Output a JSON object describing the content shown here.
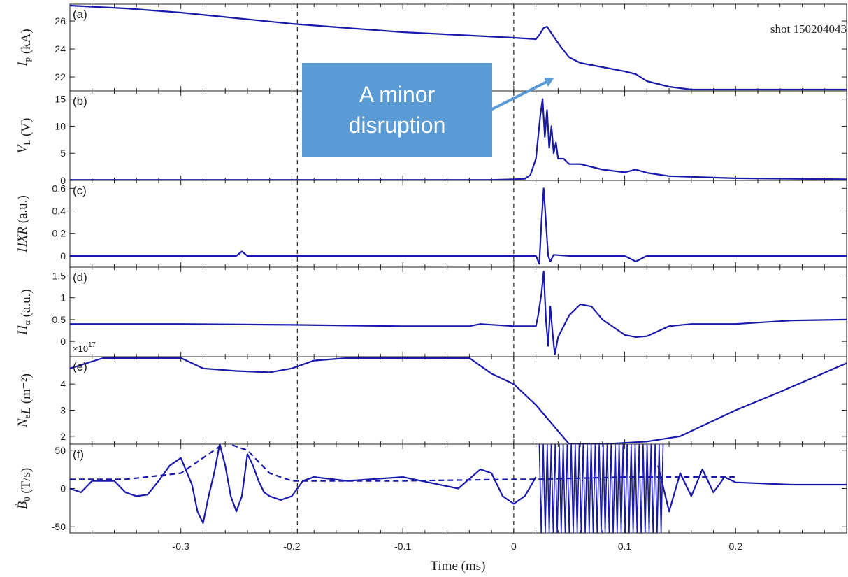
{
  "annotation": {
    "callout_line1": "A minor",
    "callout_line2": "disruption",
    "shot_label": "shot 150204043",
    "exponent_label": "×10",
    "exponent_power": "17",
    "callout_color": "#5b9bd5"
  },
  "chart_data": {
    "type": "line",
    "xlabel": "Time (ms)",
    "xlim": [
      -0.4,
      0.3
    ],
    "xticks": [
      -0.3,
      -0.2,
      -0.1,
      0,
      0.1,
      0.2
    ],
    "xtick_labels": [
      "-0.3",
      "-0.2",
      "-0.1",
      "0",
      "0.1",
      "0.2"
    ],
    "vlines": [
      -0.195,
      0
    ],
    "line_color": "#1a1aaa",
    "panels": [
      {
        "id": "a",
        "label": "(a)",
        "ylabel_main": "I",
        "ylabel_sub": "p",
        "ylabel_unit": " (kA)",
        "ylim": [
          21,
          27.2
        ],
        "yticks": [
          22,
          24,
          26
        ],
        "ytick_labels": [
          "22",
          "24",
          "26"
        ],
        "series": [
          {
            "style": "solid",
            "x": [
              -0.4,
              -0.35,
              -0.3,
              -0.25,
              -0.2,
              -0.15,
              -0.1,
              -0.05,
              0,
              0.02,
              0.023,
              0.027,
              0.03,
              0.035,
              0.042,
              0.05,
              0.06,
              0.08,
              0.1,
              0.11,
              0.12,
              0.14,
              0.16,
              0.2,
              0.3
            ],
            "y": [
              27.1,
              26.9,
              26.6,
              26.2,
              25.8,
              25.5,
              25.2,
              25.0,
              24.8,
              24.7,
              25.0,
              25.5,
              25.6,
              25.0,
              24.2,
              23.4,
              23.0,
              22.7,
              22.4,
              22.2,
              21.7,
              21.3,
              21.1,
              21.1,
              21.1
            ]
          }
        ]
      },
      {
        "id": "b",
        "label": "(b)",
        "ylabel_main": "V",
        "ylabel_sub": "L",
        "ylabel_unit": " (V)",
        "ylim": [
          0,
          16.5
        ],
        "yticks": [
          0,
          5,
          10,
          15
        ],
        "ytick_labels": [
          "0",
          "5",
          "10",
          "15"
        ],
        "series": [
          {
            "style": "solid",
            "x": [
              -0.4,
              -0.3,
              -0.2,
              -0.1,
              -0.02,
              0,
              0.01,
              0.015,
              0.02,
              0.024,
              0.026,
              0.028,
              0.03,
              0.032,
              0.034,
              0.036,
              0.038,
              0.04,
              0.045,
              0.05,
              0.06,
              0.08,
              0.1,
              0.11,
              0.12,
              0.14,
              0.2,
              0.3
            ],
            "y": [
              0.1,
              0.1,
              0.1,
              0.1,
              0.1,
              0.2,
              0.3,
              1,
              4,
              12,
              15,
              8,
              13,
              6,
              10,
              5,
              7,
              4,
              4,
              3,
              3,
              2,
              1.5,
              2,
              1.4,
              0.8,
              0.4,
              0.2
            ]
          }
        ]
      },
      {
        "id": "c",
        "label": "(c)",
        "ylabel_main": "HXR",
        "ylabel_sub": "",
        "ylabel_unit": " (a.u.)",
        "ylim": [
          -0.1,
          0.67
        ],
        "yticks": [
          0,
          0.2,
          0.4,
          0.6
        ],
        "ytick_labels": [
          "0",
          "0.2",
          "0.4",
          "0.6"
        ],
        "series": [
          {
            "style": "solid",
            "x": [
              -0.4,
              -0.3,
              -0.25,
              -0.245,
              -0.24,
              -0.2,
              -0.15,
              -0.1,
              -0.05,
              0,
              0.02,
              0.023,
              0.025,
              0.027,
              0.029,
              0.031,
              0.033,
              0.036,
              0.05,
              0.1,
              0.11,
              0.12,
              0.2,
              0.3
            ],
            "y": [
              0,
              0,
              0,
              0.04,
              0,
              0,
              0,
              0,
              0,
              0,
              0,
              -0.07,
              0.3,
              0.6,
              0.3,
              0,
              -0.05,
              0.01,
              0,
              0,
              -0.05,
              0,
              0,
              0
            ]
          }
        ]
      },
      {
        "id": "d",
        "label": "(d)",
        "ylabel_main": "H",
        "ylabel_sub": "α",
        "ylabel_unit": " (a.u.)",
        "ylim": [
          -0.35,
          1.7
        ],
        "yticks": [
          0,
          0.5,
          1,
          1.5
        ],
        "ytick_labels": [
          "0",
          "0.5",
          "1",
          "1.5"
        ],
        "series": [
          {
            "style": "solid",
            "x": [
              -0.4,
              -0.3,
              -0.2,
              -0.1,
              -0.04,
              -0.03,
              0,
              0.02,
              0.022,
              0.025,
              0.027,
              0.029,
              0.031,
              0.033,
              0.035,
              0.037,
              0.04,
              0.05,
              0.06,
              0.07,
              0.08,
              0.1,
              0.11,
              0.12,
              0.14,
              0.16,
              0.2,
              0.25,
              0.3
            ],
            "y": [
              0.4,
              0.4,
              0.38,
              0.35,
              0.35,
              0.4,
              0.35,
              0.35,
              0.6,
              1.1,
              1.6,
              0.5,
              -0.1,
              0.8,
              0.2,
              -0.3,
              0.1,
              0.6,
              0.85,
              0.8,
              0.5,
              0.15,
              0.1,
              0.12,
              0.35,
              0.4,
              0.4,
              0.48,
              0.5
            ]
          }
        ]
      },
      {
        "id": "e",
        "label": "(e)",
        "ylabel_main": "N",
        "ylabel_sub": "e",
        "ylabel_unit": " (m⁻²)",
        "ylabel_mid": "L",
        "ylim": [
          1.7,
          5.05
        ],
        "yticks": [
          2,
          3,
          4
        ],
        "ytick_labels": [
          "2",
          "3",
          "4"
        ],
        "series": [
          {
            "style": "solid",
            "x": [
              -0.4,
              -0.37,
              -0.3,
              -0.28,
              -0.25,
              -0.22,
              -0.2,
              -0.18,
              -0.15,
              -0.12,
              -0.04,
              -0.02,
              0,
              0.02,
              0.05,
              0.08,
              0.12,
              0.15,
              0.2,
              0.24,
              0.3
            ],
            "y": [
              4.6,
              5.0,
              5.0,
              4.6,
              4.5,
              4.45,
              4.6,
              4.9,
              5.0,
              5.0,
              5.0,
              4.4,
              4.0,
              3.2,
              1.7,
              1.7,
              1.8,
              2.0,
              3.0,
              3.7,
              4.8
            ]
          }
        ]
      },
      {
        "id": "f",
        "label": "(f)",
        "ylabel_main": "Ḃ",
        "ylabel_sub": "θ",
        "ylabel_unit": " (T/s)",
        "ylim": [
          -58,
          58
        ],
        "yticks": [
          -50,
          0,
          50
        ],
        "ytick_labels": [
          "-50",
          "0",
          "50"
        ],
        "series": [
          {
            "style": "solid",
            "x": [
              -0.4,
              -0.39,
              -0.38,
              -0.36,
              -0.35,
              -0.34,
              -0.33,
              -0.32,
              -0.31,
              -0.3,
              -0.29,
              -0.285,
              -0.28,
              -0.275,
              -0.27,
              -0.265,
              -0.26,
              -0.255,
              -0.25,
              -0.245,
              -0.24,
              -0.235,
              -0.23,
              -0.225,
              -0.22,
              -0.21,
              -0.2,
              -0.19,
              -0.18,
              -0.15,
              -0.1,
              -0.05,
              -0.03,
              -0.02,
              -0.01,
              0,
              0.01,
              0.02
            ],
            "y": [
              0,
              -5,
              10,
              10,
              -5,
              -10,
              -8,
              10,
              30,
              40,
              5,
              -30,
              -45,
              -10,
              20,
              58,
              30,
              -10,
              -30,
              -10,
              45,
              30,
              10,
              -5,
              -10,
              -15,
              -10,
              10,
              15,
              10,
              15,
              0,
              25,
              20,
              -10,
              -20,
              -10,
              15
            ]
          },
          {
            "style": "dashed",
            "x": [
              -0.4,
              -0.35,
              -0.3,
              -0.28,
              -0.26,
              -0.24,
              -0.22,
              -0.2,
              -0.1,
              0,
              0.02,
              0.1,
              0.2
            ],
            "y": [
              12,
              12,
              20,
              40,
              60,
              50,
              20,
              10,
              10,
              12,
              12,
              15,
              15
            ]
          },
          {
            "style": "solid",
            "x": [
              0.13,
              0.14,
              0.15,
              0.16,
              0.17,
              0.18,
              0.19,
              0.2,
              0.25,
              0.3
            ],
            "y": [
              30,
              -30,
              20,
              -10,
              25,
              -5,
              15,
              8,
              5,
              5
            ]
          }
        ],
        "saturated_band": {
          "x_start": 0.023,
          "x_end": 0.135,
          "ymin": -58,
          "ymax": 58
        }
      }
    ]
  }
}
